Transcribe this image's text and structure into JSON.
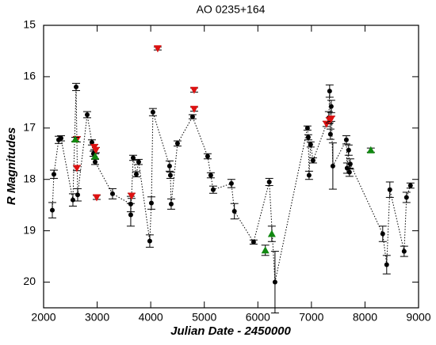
{
  "chart_data": {
    "type": "scatter",
    "title": "AO 0235+164",
    "x_label": "Julian Date - 2450000",
    "y_label": "R Magnitudes",
    "xlim": [
      2000,
      9000
    ],
    "xticks": [
      2000,
      3000,
      4000,
      5000,
      6000,
      7000,
      8000,
      9000
    ],
    "ylim": [
      20.5,
      15
    ],
    "yticks": [
      15,
      16,
      17,
      18,
      19,
      20
    ],
    "connect_line": "dotted",
    "series": [
      {
        "color": "#000000",
        "marker": "circle",
        "x": [
          2163,
          2192,
          2281,
          2325,
          2547,
          2607,
          2636,
          2814,
          2902,
          2932,
          2962,
          3287,
          3627,
          3627,
          3672,
          3731,
          3775,
          3982,
          4012,
          4041,
          4352,
          4367,
          4382,
          4500,
          4781,
          5062,
          5121,
          5166,
          5506,
          5562,
          5920,
          6213,
          6320,
          6926,
          6941,
          6956,
          6985,
          7030,
          7325,
          7340,
          7355,
          7370,
          7400,
          7652,
          7666,
          7695,
          7710,
          7725,
          8331,
          8405,
          8464,
          8731,
          8775,
          8849
        ],
        "values": [
          18.6,
          17.9,
          17.23,
          17.2,
          18.4,
          16.2,
          18.3,
          16.74,
          17.28,
          17.5,
          17.66,
          18.28,
          18.48,
          18.69,
          17.58,
          17.9,
          17.66,
          19.2,
          18.46,
          16.69,
          17.74,
          17.92,
          18.48,
          17.3,
          16.78,
          17.55,
          17.92,
          18.2,
          18.08,
          18.62,
          19.22,
          18.05,
          20.0,
          17.0,
          17.18,
          17.92,
          17.32,
          17.63,
          16.8,
          16.28,
          17.12,
          16.58,
          17.74,
          17.23,
          17.78,
          17.43,
          17.86,
          17.7,
          19.06,
          19.66,
          18.2,
          19.4,
          18.35,
          18.12
        ],
        "errors": [
          0.15,
          0.08,
          0.07,
          0.05,
          0.12,
          0.07,
          0.12,
          0.06,
          0.05,
          0.05,
          0.05,
          0.1,
          0.15,
          0.22,
          0.05,
          0.05,
          0.05,
          0.12,
          0.12,
          0.07,
          0.1,
          0.06,
          0.1,
          0.05,
          0.04,
          0.05,
          0.05,
          0.07,
          0.08,
          0.15,
          0.04,
          0.07,
          0.6,
          0.04,
          0.05,
          0.08,
          0.05,
          0.05,
          0.12,
          0.12,
          0.1,
          0.12,
          0.45,
          0.08,
          0.1,
          0.1,
          0.08,
          0.1,
          0.15,
          0.18,
          0.15,
          0.1,
          0.1,
          0.05
        ]
      },
      {
        "color": "#dd1111",
        "marker": "triangle-down",
        "x": [
          2621,
          2621,
          2947,
          2976,
          2991,
          3642,
          4130,
          4811,
          4811,
          7281,
          7340,
          7370
        ],
        "values": [
          17.22,
          17.78,
          17.37,
          17.43,
          18.35,
          18.32,
          15.45,
          16.26,
          16.63,
          16.92,
          16.85,
          16.82
        ],
        "errors": [
          0.05,
          0.05,
          0.05,
          0.05,
          0.04,
          0.05,
          0.03,
          0.04,
          0.04,
          0.05,
          0.05,
          0.05
        ]
      },
      {
        "color": "#118811",
        "marker": "triangle-up",
        "x": [
          2592,
          2962,
          6139,
          6260,
          8109
        ],
        "values": [
          17.22,
          17.55,
          19.38,
          19.06,
          17.43
        ],
        "errors": [
          0.04,
          0.05,
          0.1,
          0.15,
          0.04
        ]
      }
    ]
  }
}
